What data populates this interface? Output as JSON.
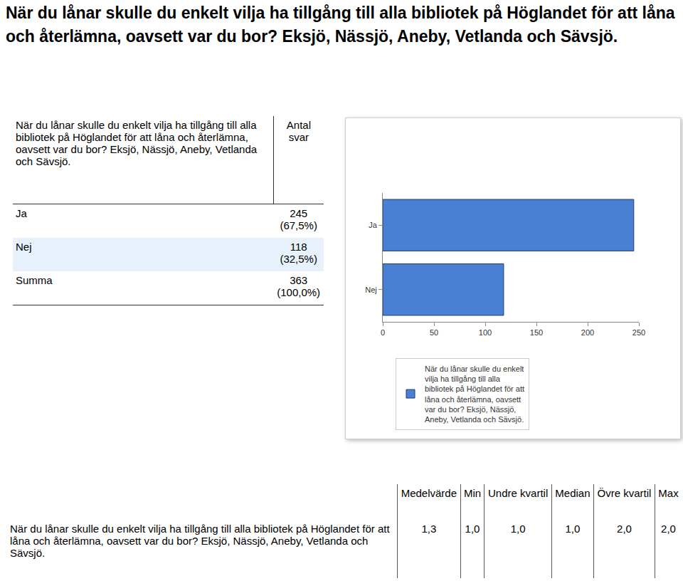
{
  "heading": "När du lånar skulle du enkelt vilja ha tillgång till alla bibliotek på Höglandet för att låna och återlämna, oavsett var du bor? Eksjö, Nässjö, Aneby, Vetlanda och Sävsjö.",
  "table": {
    "header": [
      "När du lånar skulle du enkelt vilja ha tillgång till alla bibliotek på Höglandet för att låna och återlämna, oavsett var du bor? Eksjö, Nässjö, Aneby, Vetlanda och Sävsjö.",
      "Antal svar"
    ],
    "rows": [
      [
        "Ja",
        "245",
        "(67,5%)"
      ],
      [
        "Nej",
        "118",
        "(32,5%)"
      ],
      [
        "Summa",
        "363",
        "(100,0%)"
      ]
    ]
  },
  "chart_data": {
    "type": "bar",
    "orientation": "horizontal",
    "categories": [
      "Ja",
      "Nej"
    ],
    "series": [
      {
        "name": "När du lånar skulle du enkelt vilja ha tillgång till alla bibliotek på Höglandet för att låna och återlämna, oavsett var du bor? Eksjö, Nässjö, Aneby, Vetlanda och Sävsjö.",
        "color": "#4a80d4",
        "values": [
          245,
          118
        ]
      }
    ],
    "xlim": [
      0,
      250
    ],
    "xticks": [
      0,
      50,
      100,
      150,
      200,
      250
    ],
    "grid": false,
    "legend": "bottom"
  },
  "stats_table": {
    "header": [
      "Medelvärde",
      "Min",
      "Undre kvartil",
      "Median",
      "Övre kvartil",
      "Max"
    ],
    "rows": [
      [
        "När du lånar skulle du enkelt vilja ha tillgång till alla bibliotek på Höglandet för att låna och återlämna, oavsett var du bor? Eksjö, Nässjö, Aneby, Vetlanda och Sävsjö.",
        "1,3",
        "1,0",
        "1,0",
        "1,0",
        "2,0",
        "2,0"
      ]
    ]
  }
}
